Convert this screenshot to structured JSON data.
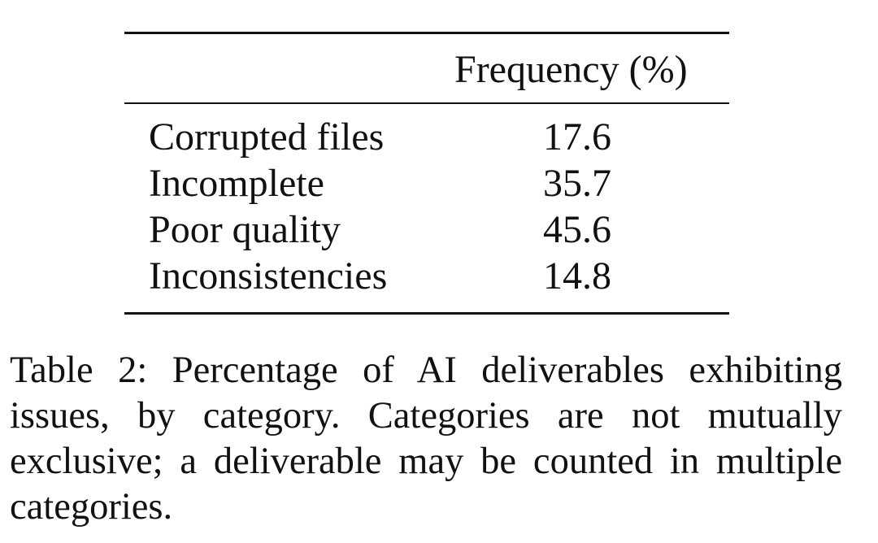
{
  "table": {
    "column_header": "Frequency (%)",
    "rows": [
      {
        "label": "Corrupted files",
        "value": "17.6"
      },
      {
        "label": "Incomplete",
        "value": "35.7"
      },
      {
        "label": "Poor quality",
        "value": "45.6"
      },
      {
        "label": "Inconsistencies",
        "value": "14.8"
      }
    ]
  },
  "caption": "Table 2: Percentage of AI deliverables exhibiting issues, by category. Categories are not mutually exclusive; a deliverable may be counted in multiple categories."
}
